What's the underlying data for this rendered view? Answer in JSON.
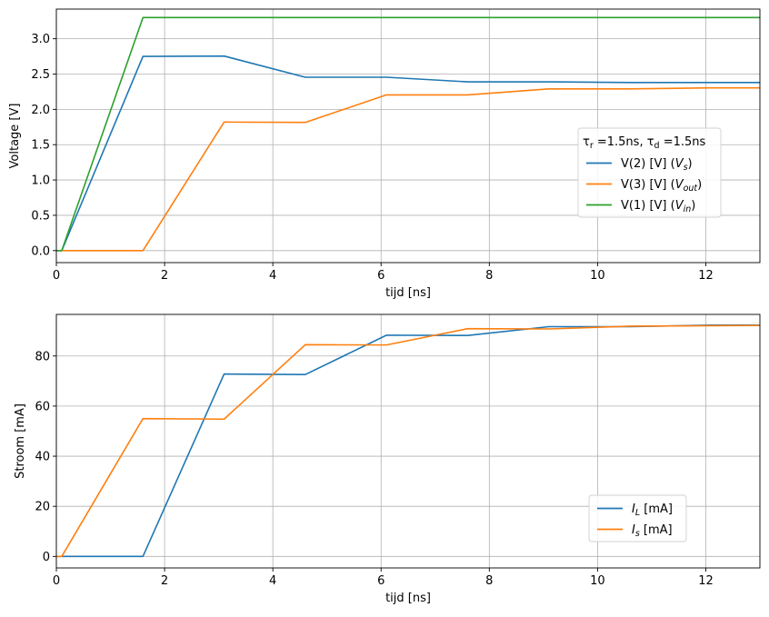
{
  "chart_data": [
    {
      "type": "line",
      "xlabel": "tijd [ns]",
      "ylabel": "Voltage [V]",
      "xlim": [
        0,
        13
      ],
      "ylim": [
        -0.17,
        3.42
      ],
      "xticks": [
        0,
        2,
        4,
        6,
        8,
        10,
        12
      ],
      "yticks": [
        0.0,
        0.5,
        1.0,
        1.5,
        2.0,
        2.5,
        3.0
      ],
      "grid": true,
      "legend_position": "center-right",
      "legend_title_parts": {
        "tau": "τ",
        "r": "r",
        "eq_r": " =1.5ns, ",
        "d": "d",
        "eq_d": " =1.5ns"
      },
      "series": [
        {
          "name": "V(2) [V]  (V_s)",
          "label_parts": {
            "base": "V(2) [V]  (",
            "var": "V",
            "sub": "s",
            "close": ")"
          },
          "color": "#1f77b4",
          "x": [
            0,
            0.1,
            1.6,
            3.1,
            4.6,
            6.1,
            7.6,
            9.1,
            10.6,
            12.1,
            13
          ],
          "y": [
            0,
            0,
            2.75,
            2.755,
            2.455,
            2.455,
            2.39,
            2.39,
            2.38,
            2.38,
            2.38
          ]
        },
        {
          "name": "V(3) [V]  (V_out)",
          "label_parts": {
            "base": "V(3) [V]  (",
            "var": "V",
            "sub": "out",
            "close": ")"
          },
          "color": "#ff7f0e",
          "x": [
            0,
            0.1,
            1.6,
            3.1,
            4.6,
            6.1,
            7.6,
            9.1,
            10.6,
            12.1,
            13
          ],
          "y": [
            0,
            0,
            0,
            1.82,
            1.815,
            2.205,
            2.205,
            2.29,
            2.29,
            2.305,
            2.305
          ]
        },
        {
          "name": "V(1) [V]  (V_in)",
          "label_parts": {
            "base": "V(1) [V]  (",
            "var": "V",
            "sub": "in",
            "close": ")"
          },
          "color": "#2ca02c",
          "x": [
            0,
            0.1,
            1.6,
            13
          ],
          "y": [
            0,
            0,
            3.3,
            3.3
          ]
        }
      ]
    },
    {
      "type": "line",
      "xlabel": "tijd [ns]",
      "ylabel": "Stroom [mA]",
      "xlim": [
        0,
        13
      ],
      "ylim": [
        -4.6,
        96.6
      ],
      "xticks": [
        0,
        2,
        4,
        6,
        8,
        10,
        12
      ],
      "yticks": [
        0,
        20,
        40,
        60,
        80
      ],
      "grid": true,
      "legend_position": "lower-right",
      "series": [
        {
          "name": "I_L  [mA]",
          "label_parts": {
            "var": "I",
            "sub": "L",
            "rest": "  [mA]"
          },
          "color": "#1f77b4",
          "x": [
            0,
            0.1,
            1.6,
            3.1,
            4.6,
            6.1,
            7.6,
            9.1,
            10.6,
            12.1,
            13
          ],
          "y": [
            0,
            0,
            0,
            72.8,
            72.6,
            88.3,
            88.2,
            91.7,
            91.7,
            92.3,
            92.3
          ]
        },
        {
          "name": "I_s [mA]",
          "label_parts": {
            "var": "I",
            "sub": "s",
            "rest": " [mA]"
          },
          "color": "#ff7f0e",
          "x": [
            0,
            0.1,
            1.6,
            3.1,
            4.6,
            6.1,
            7.6,
            9.1,
            10.6,
            12.1,
            13
          ],
          "y": [
            0,
            0,
            55,
            54.8,
            84.5,
            84.4,
            90.9,
            90.8,
            91.9,
            92.1,
            92.2
          ]
        }
      ]
    }
  ]
}
